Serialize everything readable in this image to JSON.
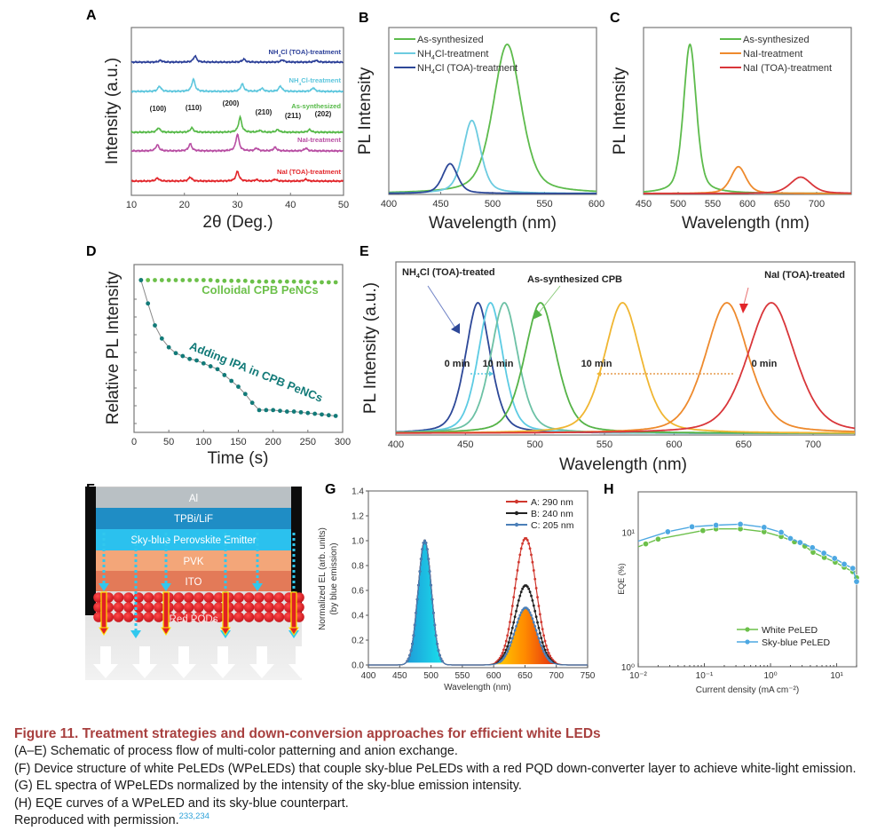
{
  "figure": {
    "caption_title": "Figure 11.  Treatment strategies and down-conversion approaches for efficient white LEDs",
    "caption_lines": [
      "(A–E) Schematic of process flow of multi-color patterning and anion exchange.",
      "(F) Device structure of white PeLEDs (WPeLEDs) that couple sky-blue PeLEDs with a red PQD down-converter layer to achieve white-light emission.",
      "(G) EL spectra of WPeLEDs normalized by the intensity of the sky-blue emission intensity.",
      "(H) EQE curves of a WPeLED and its sky-blue counterpart."
    ],
    "caption_repro": "Reproduced with permission.",
    "caption_refs": "233,234"
  },
  "chart_data": [
    {
      "panel": "A",
      "type": "line",
      "title": "",
      "xlabel": "2θ (Deg.)",
      "ylabel": "Intensity (a.u.)",
      "xlim": [
        10,
        50
      ],
      "xticks": [
        10,
        20,
        30,
        40,
        50
      ],
      "grid": false,
      "peak_labels": [
        {
          "label": "(100)",
          "x": 15
        },
        {
          "label": "(110)",
          "x": 21.5
        },
        {
          "label": "(200)",
          "x": 30.5
        },
        {
          "label": "(210)",
          "x": 34.5
        },
        {
          "label": "(211)",
          "x": 38
        },
        {
          "label": "(202)",
          "x": 44
        }
      ],
      "series": [
        {
          "name": "NH4Cl (TOA)-treatment",
          "label_main": "NH",
          "label_sub": "4",
          "label_rest": "Cl (TOA)-treatment",
          "color": "#2b3f98",
          "peaks": [
            [
              15.5,
              0.2
            ],
            [
              22,
              0.7
            ],
            [
              31.2,
              0.35
            ],
            [
              38.5,
              0.25
            ],
            [
              44.8,
              0.2
            ]
          ]
        },
        {
          "name": "NH4Cl-treatment",
          "label_main": "NH",
          "label_sub": "4",
          "label_rest": "Cl-treatment",
          "color": "#5cc6dd",
          "peaks": [
            [
              15.3,
              0.6
            ],
            [
              21.7,
              1.4
            ],
            [
              30.9,
              0.85
            ],
            [
              34.6,
              0.35
            ],
            [
              38.1,
              0.6
            ],
            [
              44.3,
              0.4
            ]
          ]
        },
        {
          "name": "As-synthesized",
          "label_main": "As-synthesized",
          "label_sub": "",
          "label_rest": "",
          "color": "#55b947",
          "peaks": [
            [
              15.1,
              0.5
            ],
            [
              21.4,
              0.5
            ],
            [
              30.5,
              1.7
            ],
            [
              34.2,
              0.2
            ],
            [
              37.6,
              0.3
            ],
            [
              43.6,
              0.3
            ]
          ]
        },
        {
          "name": "NaI-treatment",
          "label_main": "NaI-treatment",
          "label_sub": "",
          "label_rest": "",
          "color": "#b84ea3",
          "peaks": [
            [
              14.9,
              0.7
            ],
            [
              21.1,
              0.8
            ],
            [
              30.0,
              1.9
            ],
            [
              33.6,
              0.3
            ],
            [
              37.1,
              0.4
            ],
            [
              42.9,
              0.3
            ]
          ]
        },
        {
          "name": "NaI (TOA)-treatment",
          "label_main": "NaI (TOA)-treatment",
          "label_sub": "",
          "label_rest": "",
          "color": "#e2262b",
          "peaks": [
            [
              14.9,
              0.35
            ],
            [
              21.1,
              0.45
            ],
            [
              30.0,
              1.1
            ],
            [
              33.6,
              0.15
            ],
            [
              37.1,
              0.2
            ],
            [
              42.9,
              0.2
            ]
          ]
        }
      ]
    },
    {
      "panel": "B",
      "type": "line",
      "xlabel": "Wavelength (nm)",
      "ylabel": "PL Intensity",
      "xlim": [
        400,
        600
      ],
      "xticks": [
        400,
        450,
        500,
        550,
        600
      ],
      "legend": "top-left",
      "series": [
        {
          "name": "As-synthesized",
          "label_main": "As-synthesized",
          "label_sub": "",
          "label_rest": "",
          "color": "#5dbb4c",
          "peak": 514,
          "height": 1.0,
          "fwhm": 32
        },
        {
          "name": "NH4Cl-treatment",
          "label_main": "NH",
          "label_sub": "4",
          "label_rest": "Cl-treatment",
          "color": "#6ccbe0",
          "peak": 480,
          "height": 0.49,
          "fwhm": 20
        },
        {
          "name": "NH4Cl (TOA)-treatment",
          "label_main": "NH",
          "label_sub": "4",
          "label_rest": "Cl (TOA)-treatment",
          "color": "#2d4898",
          "peak": 459,
          "height": 0.2,
          "fwhm": 17
        }
      ]
    },
    {
      "panel": "C",
      "type": "line",
      "xlabel": "Wavelength (nm)",
      "ylabel": "PL Intensity",
      "xlim": [
        450,
        750
      ],
      "xticks": [
        450,
        500,
        550,
        600,
        650,
        700
      ],
      "legend": "top-right",
      "series": [
        {
          "name": "As-synthesized",
          "label_main": "As-synthesized",
          "label_sub": "",
          "label_rest": "",
          "color": "#5dbb4c",
          "peak": 517,
          "height": 1.0,
          "fwhm": 22
        },
        {
          "name": "NaI-treatment",
          "label_main": "NaI-treatment",
          "label_sub": "",
          "label_rest": "",
          "color": "#ee8a2d",
          "peak": 587,
          "height": 0.18,
          "fwhm": 26
        },
        {
          "name": "NaI (TOA)-treatment",
          "label_main": "NaI (TOA)-treatment",
          "label_sub": "",
          "label_rest": "",
          "color": "#d9363a",
          "peak": 677,
          "height": 0.11,
          "fwhm": 36
        }
      ]
    },
    {
      "panel": "D",
      "type": "scatter",
      "xlabel": "Time (s)",
      "ylabel": "Relative PL Intensity",
      "xlim": [
        0,
        300
      ],
      "ylim": [
        0,
        1.1
      ],
      "xticks": [
        0,
        50,
        100,
        150,
        200,
        250,
        300
      ],
      "series": [
        {
          "name": "Colloidal CPB PeNCs",
          "color": "#6cc04a",
          "x": [
            10,
            20,
            30,
            40,
            50,
            60,
            70,
            80,
            90,
            100,
            110,
            120,
            130,
            140,
            150,
            160,
            170,
            180,
            190,
            200,
            210,
            220,
            230,
            240,
            250,
            260,
            270,
            280,
            290
          ],
          "y": [
            1.0,
            1.0,
            1.0,
            1.0,
            1.0,
            1.0,
            1.0,
            1.0,
            1.0,
            1.0,
            1.0,
            0.995,
            0.995,
            0.995,
            0.995,
            0.995,
            0.99,
            0.99,
            0.99,
            0.99,
            0.99,
            0.99,
            0.99,
            0.99,
            0.985,
            0.985,
            0.985,
            0.985,
            0.985
          ]
        },
        {
          "name": "Adding IPA in CPB PeNCs",
          "color": "#127a78",
          "x": [
            10,
            20,
            30,
            40,
            50,
            60,
            70,
            80,
            90,
            100,
            110,
            120,
            130,
            140,
            150,
            160,
            170,
            180,
            190,
            200,
            210,
            220,
            230,
            240,
            250,
            260,
            270,
            280,
            290
          ],
          "y": [
            1.0,
            0.84,
            0.69,
            0.6,
            0.54,
            0.5,
            0.48,
            0.46,
            0.45,
            0.43,
            0.41,
            0.39,
            0.35,
            0.31,
            0.27,
            0.22,
            0.16,
            0.11,
            0.11,
            0.11,
            0.105,
            0.1,
            0.1,
            0.095,
            0.09,
            0.085,
            0.08,
            0.075,
            0.07
          ]
        }
      ]
    },
    {
      "panel": "E",
      "type": "line",
      "xlabel": "Wavelength (nm)",
      "ylabel": "PL Intensity (a.u.)",
      "xlim": [
        400,
        730
      ],
      "xticks": [
        400,
        450,
        500,
        550,
        600,
        650,
        700
      ],
      "annotations": [
        {
          "text_main": "NH",
          "text_sub": "4",
          "text_rest": "Cl (TOA)-treated",
          "color": "#2b3f98"
        },
        {
          "text_main": "As-synthesized CPB",
          "text_sub": "",
          "text_rest": "",
          "color": "#55b947"
        },
        {
          "text_main": "NaI (TOA)-treated",
          "text_sub": "",
          "text_rest": "",
          "color": "#e2262b"
        },
        {
          "text_main": "0 min",
          "text_sub": "",
          "text_rest": ""
        },
        {
          "text_main": "10 min",
          "text_sub": "",
          "text_rest": ""
        },
        {
          "text_main": "10 min",
          "text_sub": "",
          "text_rest": ""
        },
        {
          "text_main": "0 min",
          "text_sub": "",
          "text_rest": ""
        }
      ],
      "series": [
        {
          "name": "NH4Cl (TOA)-treated 0 min",
          "color": "#2d4898",
          "peak": 459,
          "fwhm": 22
        },
        {
          "name": "intermediate 1",
          "color": "#5ccbe3",
          "peak": 468,
          "fwhm": 22
        },
        {
          "name": "intermediate 2",
          "color": "#6cc1a5",
          "peak": 478,
          "fwhm": 24
        },
        {
          "name": "As-synthesized CPB",
          "color": "#55b347",
          "peak": 504,
          "fwhm": 28
        },
        {
          "name": "NaI 10 min",
          "color": "#f0b632",
          "peak": 563,
          "fwhm": 32
        },
        {
          "name": "NaI intermediate",
          "color": "#ee8a2d",
          "peak": 638,
          "fwhm": 38
        },
        {
          "name": "NaI (TOA)-treated 0 min",
          "color": "#d9363a",
          "peak": 670,
          "fwhm": 42
        }
      ]
    },
    {
      "panel": "F",
      "type": "diagram",
      "layers": [
        {
          "label": "Al",
          "color": "#b9c0c4"
        },
        {
          "label": "TPBi/LiF",
          "color": "#1f8dc5"
        },
        {
          "label": "Sky-blue Perovskite Emitter",
          "color": "#2bc1ee"
        },
        {
          "label": "PVK",
          "color": "#f3a679"
        },
        {
          "label": "ITO",
          "color": "#e37a58"
        },
        {
          "label": "Red PQDs",
          "color": "#e11f26"
        }
      ]
    },
    {
      "panel": "G",
      "type": "line",
      "xlabel": "Wavelength (nm)",
      "ylabel": "Normalized EL (arb. units)",
      "ylabel2": "(by blue emission)",
      "xlim": [
        400,
        750
      ],
      "ylim": [
        0,
        1.4
      ],
      "xticks": [
        400,
        450,
        500,
        550,
        600,
        650,
        700,
        750
      ],
      "yticks": [
        0.0,
        0.2,
        0.4,
        0.6,
        0.8,
        1.0,
        1.2,
        1.4
      ],
      "legend": "top-right",
      "series": [
        {
          "name": "A: 290 nm",
          "color": "#d0372e",
          "blue_peak": 490,
          "red_peak": 651,
          "red_height": 1.02
        },
        {
          "name": "B: 240 nm",
          "color": "#222222",
          "blue_peak": 490,
          "red_peak": 651,
          "red_height": 0.64
        },
        {
          "name": "C: 205 nm",
          "color": "#4b7fb8",
          "blue_peak": 490,
          "red_peak": 651,
          "red_height": 0.46
        }
      ]
    },
    {
      "panel": "H",
      "type": "line",
      "xlabel": "Current density (mA cm⁻²)",
      "ylabel": "EQE (%)",
      "xscale": "log",
      "yscale": "log",
      "xlim": [
        0.01,
        20
      ],
      "ylim": [
        1,
        20
      ],
      "xticks": [
        "10⁻²",
        "10⁻¹",
        "10⁰",
        "10¹"
      ],
      "yticks": [
        "10⁰",
        "10¹"
      ],
      "legend": "bottom-right",
      "series": [
        {
          "name": "White PeLED",
          "color": "#6cc04a",
          "x": [
            0.01,
            0.013,
            0.02,
            0.095,
            0.15,
            0.35,
            0.8,
            1.45,
            2.3,
            3.3,
            4.4,
            6.5,
            9.5,
            13,
            17.5,
            20
          ],
          "y": [
            7.8,
            8.2,
            8.9,
            10.3,
            10.6,
            10.6,
            10.1,
            9.3,
            8.5,
            7.9,
            7.1,
            6.5,
            6.0,
            5.5,
            5.1,
            4.6
          ]
        },
        {
          "name": "Sky-blue PeLED",
          "color": "#4da8e2",
          "x": [
            0.01,
            0.028,
            0.065,
            0.15,
            0.35,
            0.8,
            1.45,
            2.0,
            2.8,
            4.3,
            6.4,
            9.3,
            13,
            17.5,
            20
          ],
          "y": [
            8.6,
            10.1,
            11.0,
            11.3,
            11.5,
            10.9,
            10.0,
            9.0,
            8.4,
            7.7,
            7.0,
            6.4,
            5.8,
            5.4,
            4.3
          ]
        }
      ]
    }
  ]
}
